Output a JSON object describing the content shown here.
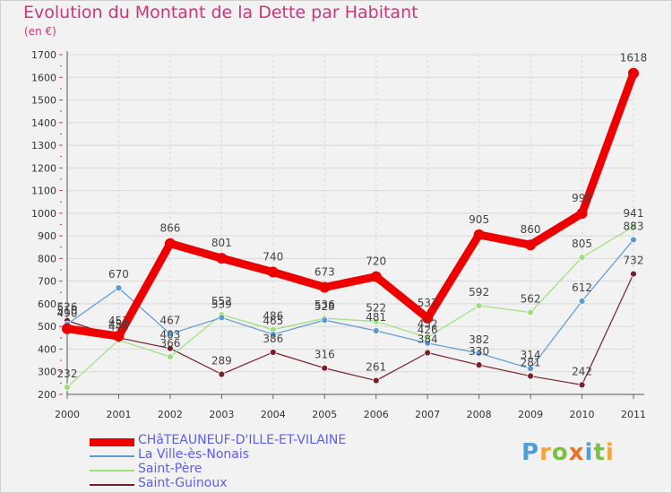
{
  "title": "Evolution du Montant de la Dette par Habitant",
  "unit": "(en €)",
  "logo": {
    "text": "Proxiti",
    "letters": [
      "P",
      "r",
      "o",
      "x",
      "i",
      "t",
      "i"
    ],
    "colors": [
      "#4f9fd6",
      "#f2a33a",
      "#7ac143",
      "#e8732c",
      "#4f9fd6",
      "#7ac143",
      "#f2a33a"
    ]
  },
  "chart_data": {
    "type": "line",
    "title": "Evolution du Montant de la Dette par Habitant",
    "ylabel": "(en €)",
    "ylim": [
      200,
      1700
    ],
    "yticks": [
      200,
      300,
      400,
      500,
      600,
      700,
      800,
      900,
      1000,
      1100,
      1200,
      1300,
      1400,
      1500,
      1600,
      1700
    ],
    "x": [
      "2000",
      "2001",
      "2002",
      "2003",
      "2004",
      "2005",
      "2006",
      "2007",
      "2008",
      "2009",
      "2010",
      "2011"
    ],
    "legend_position": "bottom-left",
    "grid": true,
    "series": [
      {
        "name": "CHâTEAUNEUF-D'ILLE-ET-VILAINE",
        "color": "#ee0000",
        "values": [
          490,
          457,
          866,
          801,
          740,
          673,
          720,
          537,
          905,
          860,
          999,
          1618
        ],
        "labels": [
          "490",
          "457",
          "866",
          "801",
          "740",
          "673",
          "720",
          "537",
          "905",
          "860",
          "999",
          "1618"
        ]
      },
      {
        "name": "La Ville-ès-Nonais",
        "color": "#5b9bd5",
        "values": [
          510,
          670,
          467,
          539,
          465,
          528,
          481,
          426,
          382,
          314,
          612,
          883
        ],
        "labels": [
          "510",
          "670",
          "467",
          "539",
          "465",
          "528",
          "481",
          "426",
          "382",
          "314",
          "612",
          "883"
        ]
      },
      {
        "name": "Saint-Père",
        "color": "#9be07a",
        "values": [
          232,
          440,
          366,
          552,
          486,
          536,
          522,
          452,
          592,
          562,
          805,
          941
        ],
        "labels": [
          "232",
          "440",
          "366",
          "552",
          "486",
          "536",
          "522",
          "452",
          "592",
          "562",
          "805",
          "941"
        ]
      },
      {
        "name": "Saint-Guinoux",
        "color": "#7a1f2a",
        "values": [
          526,
          450,
          403,
          289,
          386,
          316,
          261,
          384,
          330,
          281,
          242,
          732
        ],
        "labels": [
          "526",
          "450",
          "403",
          "289",
          "386",
          "316",
          "261",
          "384",
          "330",
          "281",
          "242",
          "732"
        ]
      }
    ]
  }
}
